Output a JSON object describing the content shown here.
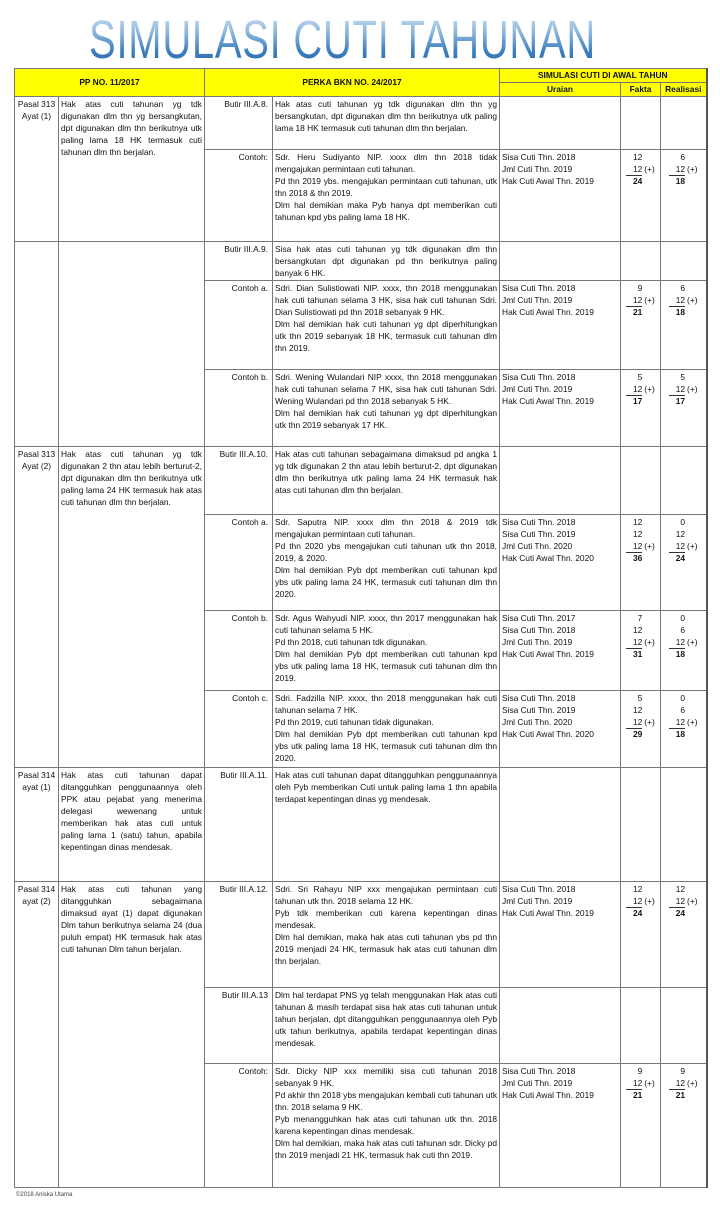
{
  "title": "SIMULASI CUTI TAHUNAN",
  "header": {
    "pp": "PP NO. 11/2017",
    "perka": "PERKA BKN NO. 24/2017",
    "simulasi": "SIMULASI CUTI DI AWAL TAHUN",
    "uraian": "Uraian",
    "fakta": "Fakta",
    "realisasi": "Realisasi"
  },
  "sum_marker": "(+)",
  "colors": {
    "header_bg": "#ffff00",
    "title_blue": "#3d7fc0",
    "border": "#777777"
  },
  "groups": [
    {
      "pasal": "Pasal 313 Ayat (1)",
      "pasal_text": "Hak atas cuti tahunan yg tdk digunakan dlm thn yg bersangkutan, dpt digunakan dlm thn berikutnya utk paling lama 18 HK termasuk cuti tahunan dlm thn berjalan.",
      "rows": [
        {
          "label": "Butir III.A.8.",
          "text": [
            "Hak atas cuti tahunan yg tdk digunakan dlm thn yg bersangkutan, dpt digunakan dlm thn berikutnya utk paling lama 18 HK termasuk cuti tahunan dlm thn berjalan."
          ]
        },
        {
          "label": "Contoh:",
          "text": [
            "Sdr. Heru Sudiyanto NIP. xxxx dlm thn 2018 tidak mengajukan permintaan cuti tahunan.",
            "Pd thn 2019 ybs. mengajukan permintaan cuti tahunan, utk thn 2018 & thn 2019.",
            "Dlm hal demikian maka Pyb hanya dpt memberikan cuti tahunan kpd ybs paling lama 18 HK."
          ],
          "sim": {
            "items": [
              {
                "label": "Sisa Cuti Thn. 2018",
                "fakta": "12",
                "realisasi": "6"
              },
              {
                "label": "Jml Cuti Thn. 2019",
                "fakta": "12",
                "realisasi": "12"
              }
            ],
            "total": {
              "label": "Hak Cuti Awal Thn. 2019",
              "fakta": "24",
              "realisasi": "18"
            }
          }
        }
      ]
    },
    {
      "pasal": "",
      "pasal_text": "",
      "rows": [
        {
          "label": "Butir III.A.9.",
          "text": [
            "Sisa hak atas cuti tahunan yg tdk digunakan dlm thn bersangkutan dpt digunakan pd thn berikutnya paling banyak 6 HK."
          ]
        },
        {
          "label": "Contoh a.",
          "text": [
            "Sdri. Dian Sulistiowati NIP. xxxx, thn 2018 menggunakan hak cuti tahunan selama 3 HK, sisa hak cuti tahunan Sdri. Dian Sulistiowati pd thn 2018 sebanyak 9 HK.",
            "Dlm hal demikian hak cuti tahunan yg dpt diperhitungkan utk thn 2019 sebanyak 18 HK, termasuk cuti tahunan dlm thn 2019."
          ],
          "sim": {
            "items": [
              {
                "label": "Sisa Cuti Thn. 2018",
                "fakta": "9",
                "realisasi": "6"
              },
              {
                "label": "Jml Cuti Thn. 2019",
                "fakta": "12",
                "realisasi": "12"
              }
            ],
            "total": {
              "label": "Hak Cuti Awal Thn. 2019",
              "fakta": "21",
              "realisasi": "18"
            }
          }
        },
        {
          "label": "Contoh b.",
          "text": [
            "Sdri. Wening Wulandari NIP xxxx, thn 2018 menggunakan hak cuti tahunan selama 7 HK, sisa hak cuti tahunan Sdri. Wening Wulandari pd thn 2018 sebanyak 5 HK.",
            "Dlm hal demikian hak cuti tahunan yg dpt diperhitungkan utk thn 2019 sebanyak 17 HK."
          ],
          "sim": {
            "items": [
              {
                "label": "Sisa Cuti Thn. 2018",
                "fakta": "5",
                "realisasi": "5"
              },
              {
                "label": "Jml Cuti Thn. 2019",
                "fakta": "12",
                "realisasi": "12"
              }
            ],
            "total": {
              "label": "Hak Cuti Awal Thn. 2019",
              "fakta": "17",
              "realisasi": "17"
            }
          }
        }
      ]
    },
    {
      "pasal": "Pasal 313 Ayat (2)",
      "pasal_text": "Hak atas cuti tahunan yg tdk digunakan 2 thn atau lebih berturut-2, dpt digunakan dlm thn berikutnya utk paling lama 24 HK termasuk hak atas cuti tahunan dlm thn berjalan.",
      "rows": [
        {
          "label": "Butir III.A.10.",
          "text": [
            "Hak atas cuti tahunan sebagaimana dimaksud pd angka 1 yg tdk digunakan 2 thn atau lebih berturut-2, dpt digunakan dlm thn berikutnya utk paling lama 24 HK termasuk hak atas cuti tahunan dlm thn berjalan."
          ]
        },
        {
          "label": "Contoh a.",
          "text": [
            "Sdr. Saputra NIP. xxxx dlm thn 2018 & 2019 tdk mengajukan permintaan cuti tahunan.",
            "Pd thn 2020 ybs mengajukan cuti tahunan utk thn 2018, 2019, & 2020.",
            "Dlm hal demikian Pyb dpt memberikan cuti tahunan kpd ybs utk paling lama 24 HK, termasuk cuti tahunan dlm thn 2020."
          ],
          "sim": {
            "items": [
              {
                "label": "Sisa Cuti Thn. 2018",
                "fakta": "12",
                "realisasi": "0"
              },
              {
                "label": "Sisa Cuti Thn. 2019",
                "fakta": "12",
                "realisasi": "12"
              },
              {
                "label": "Jml Cuti Thn. 2020",
                "fakta": "12",
                "realisasi": "12"
              }
            ],
            "total": {
              "label": "Hak Cuti Awal Thn. 2020",
              "fakta": "36",
              "realisasi": "24"
            }
          }
        },
        {
          "label": "Contoh b.",
          "text": [
            "Sdr. Agus Wahyudi NIP. xxxx, thn 2017 menggunakan hak cuti tahunan selama 5 HK.",
            "Pd thn 2018, cuti tahunan tdk digunakan.",
            "Dlm hal demikian Pyb dpt memberikan cuti tahunan kpd ybs utk paling lama 18 HK, termasuk cuti tahunan dlm thn 2019."
          ],
          "sim": {
            "items": [
              {
                "label": "Sisa Cuti Thn. 2017",
                "fakta": "7",
                "realisasi": "0"
              },
              {
                "label": "Sisa Cuti Thn. 2018",
                "fakta": "12",
                "realisasi": "6"
              },
              {
                "label": "Jml Cuti Thn. 2019",
                "fakta": "12",
                "realisasi": "12"
              }
            ],
            "total": {
              "label": "Hak Cuti Awal Thn. 2019",
              "fakta": "31",
              "realisasi": "18"
            }
          }
        },
        {
          "label": "Contoh c.",
          "text": [
            "Sdri. Fadzilla NIP. xxxx, thn 2018 menggunakan hak cuti tahunan selama 7 HK.",
            "Pd thn 2019, cuti tahunan tidak digunakan.",
            "Dlm hal demikian Pyb dpt memberikan cuti tahunan kpd ybs utk paling lama 18 HK, termasuk cuti tahunan dlm thn 2020."
          ],
          "sim": {
            "items": [
              {
                "label": "Sisa Cuti Thn. 2018",
                "fakta": "5",
                "realisasi": "0"
              },
              {
                "label": "Sisa Cuti Thn. 2019",
                "fakta": "12",
                "realisasi": "6"
              },
              {
                "label": "Jml Cuti Thn. 2020",
                "fakta": "12",
                "realisasi": "12"
              }
            ],
            "total": {
              "label": "Hak Cuti Awal Thn. 2020",
              "fakta": "29",
              "realisasi": "18"
            }
          }
        }
      ]
    },
    {
      "pasal": "Pasal 314 ayat (1)",
      "pasal_text": "Hak atas cuti tahunan dapat ditangguhkan penggunaannya oleh PPK atau pejabat yang menerima delegasi wewenang untuk memberikan hak atas cuti untuk paling lama 1 (satu) tahun, apabila kepentingan dinas mendesak.",
      "rows": [
        {
          "label": "Butir III.A.11.",
          "text": [
            "Hak atas cuti tahunan dapat ditangguhkan penggunaannya oleh Pyb memberikan Cuti untuk paling lama 1 thn apabila terdapat kepentingan dinas yg mendesak."
          ]
        }
      ]
    },
    {
      "pasal": "Pasal 314 ayat (2)",
      "pasal_text": "Hak atas cuti tahunan yang ditangguhkan sebagaimana dimaksud ayat (1) dapat digunakan Dlm tahun berikutnya selama 24 (dua puluh empat) HK termasuk hak atas cuti tahunan Dlm tahun berjalan.",
      "rows": [
        {
          "label": "Butir III.A.12.",
          "text": [
            "Sdri. Sri Rahayu NIP xxx mengajukan permintaan cuti tahunan utk thn. 2018 selama 12 HK.",
            "Pyb tdk memberikan cuti karena kepentingan dinas mendesak.",
            "Dlm hal demikian, maka hak atas cuti tahunan ybs pd thn 2019 menjadi 24 HK, termasuk hak atas cuti tahunan dlm thn berjalan."
          ],
          "sim": {
            "items": [
              {
                "label": "Sisa Cuti Thn. 2018",
                "fakta": "12",
                "realisasi": "12"
              },
              {
                "label": "Jml Cuti Thn. 2019",
                "fakta": "12",
                "realisasi": "12"
              }
            ],
            "total": {
              "label": "Hak Cuti Awal Thn. 2019",
              "fakta": "24",
              "realisasi": "24"
            }
          }
        },
        {
          "label": "Butir III.A.13",
          "text": [
            "Dlm hal terdapat PNS yg telah menggunakan Hak atas cuti tahunan & masih terdapat sisa hak atas cuti tahunan untuk tahun berjalan, dpt ditangguhkan penggunaannya oleh Pyb utk tahun berikutnya, apabila terdapat kepentingan dinas mendesak."
          ]
        },
        {
          "label": "Contoh:",
          "text": [
            "Sdr. Dicky NIP xxx memiliki sisa cuti tahunan 2018 sebanyak 9 HK.",
            "Pd akhir thn 2018 ybs mengajukan kembali cuti tahunan utk thn. 2018 selama 9 HK.",
            "Pyb menangguhkan hak atas cuti tahunan utk thn. 2018 karena kepentingan dinas mendesak.",
            "Dlm hal demikian, maka hak atas cuti tahunan sdr. Dicky pd thn 2019 menjadi 21 HK, termasuk hak cuti thn 2019."
          ],
          "sim": {
            "items": [
              {
                "label": "Sisa Cuti Thn. 2018",
                "fakta": "9",
                "realisasi": "9"
              },
              {
                "label": "Jml Cuti Thn. 2019",
                "fakta": "12",
                "realisasi": "12"
              }
            ],
            "total": {
              "label": "Hak Cuti Awal Thn. 2019",
              "fakta": "21",
              "realisasi": "21"
            }
          }
        }
      ]
    }
  ],
  "footer": "©2018 Aniska Utama"
}
